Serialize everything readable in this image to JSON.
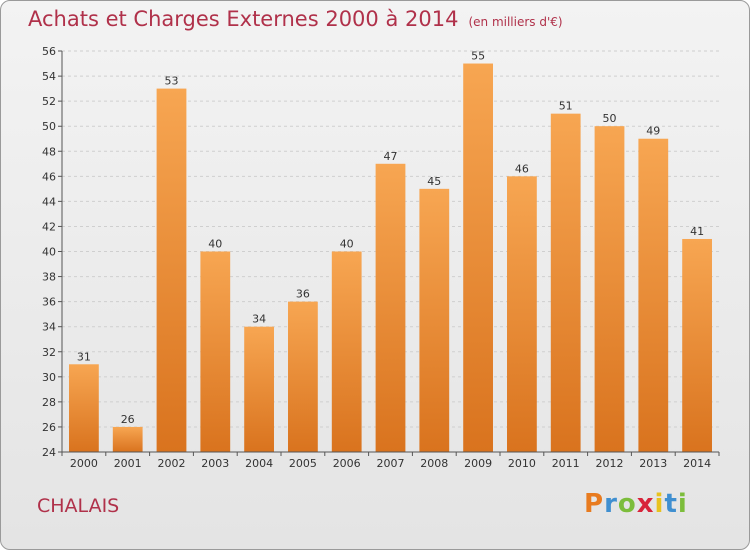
{
  "title": "Achats et Charges Externes 2000 à 2014",
  "unit_note": "(en milliers d'€)",
  "town": "CHALAIS",
  "brand": {
    "letters": [
      "P",
      "r",
      "o",
      "x",
      "i",
      "t",
      "i"
    ],
    "colors": [
      "#e87b1f",
      "#3f8fd0",
      "#7cbd3b",
      "#d8243a",
      "#e8c21f",
      "#3f8fd0",
      "#7cbd3b"
    ]
  },
  "chart_data": {
    "type": "bar",
    "categories": [
      "2000",
      "2001",
      "2002",
      "2003",
      "2004",
      "2005",
      "2006",
      "2007",
      "2008",
      "2009",
      "2010",
      "2011",
      "2012",
      "2013",
      "2014"
    ],
    "values": [
      31,
      26,
      53,
      40,
      34,
      36,
      40,
      47,
      45,
      55,
      46,
      51,
      50,
      49,
      41
    ],
    "data_labels": [
      "31",
      "26",
      "53",
      "40",
      "34",
      "36",
      "40",
      "47",
      "45",
      "55",
      "46",
      "51",
      "50",
      "49",
      "41"
    ],
    "ylim": [
      24,
      56
    ],
    "yticks": [
      "24",
      "26",
      "28",
      "30",
      "32",
      "34",
      "36",
      "38",
      "40",
      "42",
      "44",
      "46",
      "48",
      "50",
      "52",
      "54",
      "56"
    ],
    "grid": true,
    "colors": {
      "bar_top": "#f7a652",
      "bar_bottom": "#d9731e",
      "grid": "#cfcfcf",
      "axis": "#555555",
      "label": "#333333"
    }
  }
}
